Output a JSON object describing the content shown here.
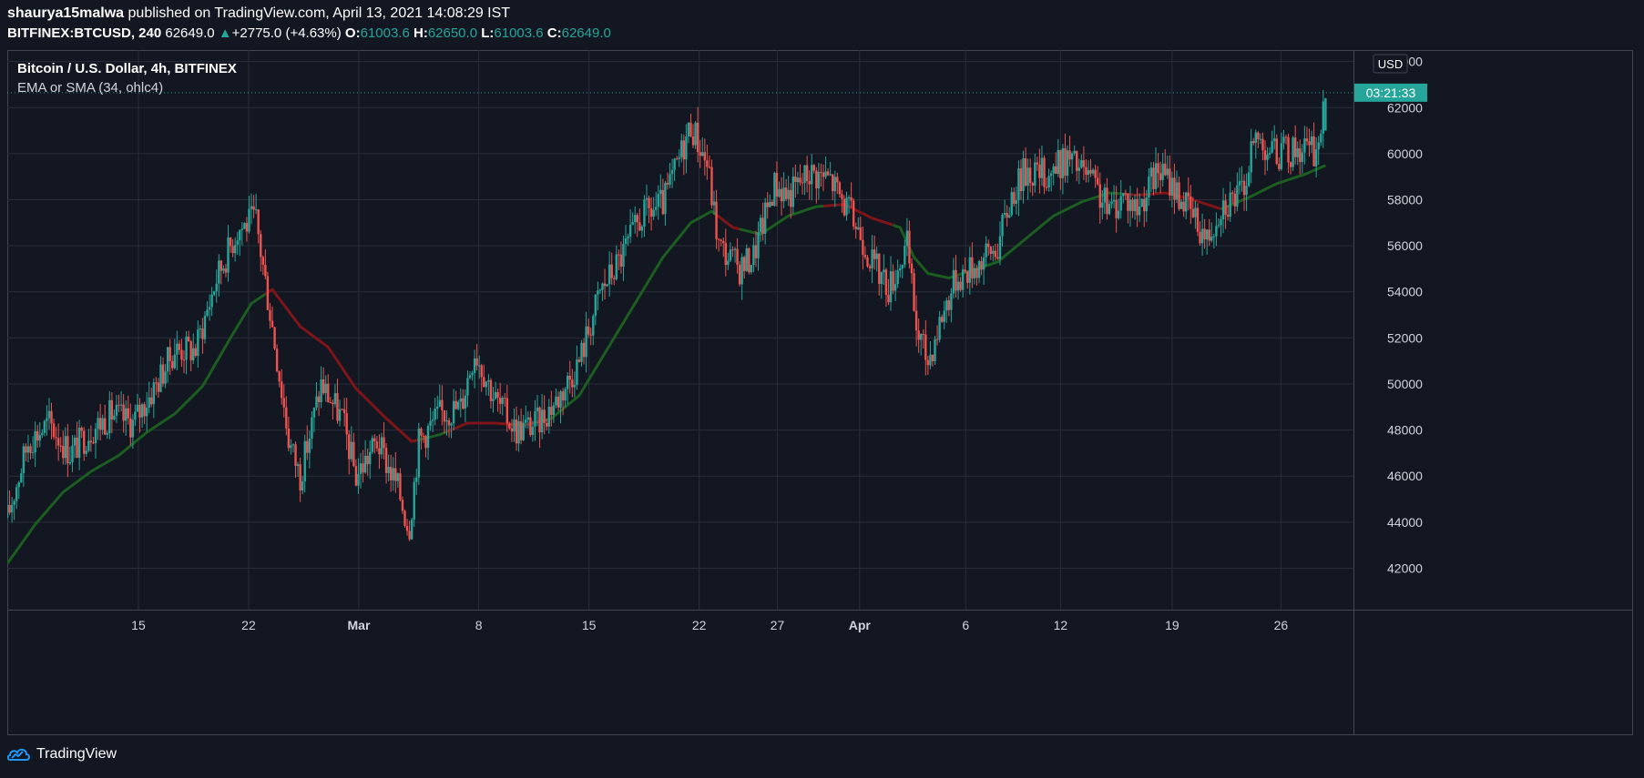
{
  "header": {
    "author": "shaurya15malwa",
    "published_text": "published on TradingView.com, April 13, 2021 14:08:29 IST"
  },
  "quote": {
    "symbol": "BITFINEX:BTCUSD, 240",
    "last": "62649.0",
    "change_arrow": "▲",
    "change": "+2775.0 (+4.63%)",
    "o_label": "O:",
    "o": "61003.6",
    "h_label": "H:",
    "h": "62650.0",
    "l_label": "L:",
    "l": "61003.6",
    "c_label": "C:",
    "c": "62649.0"
  },
  "legend": {
    "title": "Bitcoin / U.S. Dollar, 4h, BITFINEX",
    "indicator": "EMA or SMA (34, ohlc4)"
  },
  "brand": {
    "name": "TradingView",
    "icon": "tradingview-logo-icon"
  },
  "colors": {
    "background": "#131722",
    "grid": "#2a2e39",
    "up": "#26a69a",
    "down": "#ef5350",
    "ma_up": "#1b5e20",
    "ma_down": "#7f1518",
    "text": "#d1d4dc"
  },
  "chart_data": {
    "type": "candlestick",
    "currency_label": "USD",
    "price_ticks": [
      42000,
      44000,
      46000,
      48000,
      50000,
      52000,
      54000,
      56000,
      58000,
      60000,
      62000,
      64000
    ],
    "ylim": [
      40200,
      64500
    ],
    "time_labels": [
      "15",
      "22",
      "Mar",
      "8",
      "15",
      "22",
      "27",
      "Apr",
      "6",
      "12",
      "19",
      "26"
    ],
    "xlim_days": [
      0,
      83
    ],
    "countdown_label": "03:21:33",
    "last_price": 62649.0,
    "grid": true,
    "candle_keypoints": [
      [
        0,
        44200
      ],
      [
        1.5,
        47500
      ],
      [
        3,
        48300
      ],
      [
        4.5,
        47000
      ],
      [
        6,
        48000
      ],
      [
        7.5,
        48700
      ],
      [
        9,
        48300
      ],
      [
        10.5,
        49800
      ],
      [
        12,
        51500
      ],
      [
        13.5,
        51500
      ],
      [
        15,
        54600
      ],
      [
        16.5,
        56700
      ],
      [
        17.8,
        57200
      ],
      [
        19,
        52500
      ],
      [
        20.2,
        47500
      ],
      [
        21,
        46000
      ],
      [
        22.5,
        50000
      ],
      [
        24,
        48500
      ],
      [
        25,
        46000
      ],
      [
        26.5,
        47500
      ],
      [
        28,
        45500
      ],
      [
        28.8,
        43700
      ],
      [
        29.5,
        47500
      ],
      [
        31,
        48700
      ],
      [
        32.5,
        49000
      ],
      [
        33.5,
        51500
      ],
      [
        35,
        49300
      ],
      [
        36.5,
        48000
      ],
      [
        38,
        48300
      ],
      [
        39.5,
        49400
      ],
      [
        41,
        51000
      ],
      [
        42.5,
        54000
      ],
      [
        44,
        55500
      ],
      [
        45.5,
        57300
      ],
      [
        47,
        57800
      ],
      [
        48,
        59500
      ],
      [
        49,
        61300
      ],
      [
        50.2,
        59500
      ],
      [
        51,
        56000
      ],
      [
        52.5,
        55000
      ],
      [
        53.5,
        55600
      ],
      [
        55,
        58700
      ],
      [
        56,
        58200
      ],
      [
        57.5,
        59200
      ],
      [
        59,
        58900
      ],
      [
        60.3,
        57500
      ],
      [
        61.2,
        56500
      ],
      [
        62,
        55300
      ],
      [
        63.2,
        54200
      ],
      [
        64.5,
        56000
      ],
      [
        65.2,
        52300
      ],
      [
        66,
        51000
      ],
      [
        67,
        53000
      ],
      [
        68,
        54600
      ],
      [
        69.5,
        55200
      ],
      [
        71,
        56000
      ],
      [
        72,
        58200
      ],
      [
        73,
        59300
      ],
      [
        74.5,
        59100
      ],
      [
        76,
        59800
      ],
      [
        77.5,
        59000
      ],
      [
        79,
        57500
      ],
      [
        80,
        58200
      ],
      [
        81,
        57600
      ],
      [
        82.5,
        59300
      ],
      [
        83.5,
        58700
      ],
      [
        85,
        57300
      ],
      [
        86,
        56300
      ],
      [
        87,
        57800
      ],
      [
        88.5,
        58300
      ],
      [
        89.5,
        60700
      ],
      [
        91,
        60000
      ],
      [
        92,
        60100
      ],
      [
        93,
        60300
      ],
      [
        93.7,
        60000
      ],
      [
        94.2,
        61000
      ],
      [
        94.55,
        62649
      ]
    ],
    "ma_keypoints": [
      [
        0,
        42200
      ],
      [
        2,
        43900
      ],
      [
        4,
        45300
      ],
      [
        6,
        46200
      ],
      [
        8,
        46900
      ],
      [
        10,
        47900
      ],
      [
        12,
        48700
      ],
      [
        14,
        49900
      ],
      [
        16,
        52000
      ],
      [
        17.5,
        53500
      ],
      [
        19,
        54100
      ],
      [
        21,
        52500
      ],
      [
        23,
        51600
      ],
      [
        25,
        49800
      ],
      [
        27,
        48600
      ],
      [
        29,
        47500
      ],
      [
        31,
        47800
      ],
      [
        33,
        48300
      ],
      [
        35,
        48300
      ],
      [
        37,
        48200
      ],
      [
        39,
        48500
      ],
      [
        41,
        49500
      ],
      [
        43,
        51500
      ],
      [
        45,
        53500
      ],
      [
        47,
        55500
      ],
      [
        49,
        57000
      ],
      [
        50.5,
        57500
      ],
      [
        52,
        56800
      ],
      [
        54,
        56500
      ],
      [
        56,
        57300
      ],
      [
        58,
        57700
      ],
      [
        60,
        57800
      ],
      [
        62,
        57200
      ],
      [
        64,
        56800
      ],
      [
        65,
        55500
      ],
      [
        66,
        54800
      ],
      [
        67.5,
        54600
      ],
      [
        69,
        54900
      ],
      [
        71,
        55300
      ],
      [
        73,
        56300
      ],
      [
        75,
        57300
      ],
      [
        77,
        57900
      ],
      [
        79,
        58300
      ],
      [
        81,
        58200
      ],
      [
        83,
        58300
      ],
      [
        85,
        58000
      ],
      [
        87,
        57600
      ],
      [
        89,
        58100
      ],
      [
        91,
        58700
      ],
      [
        93,
        59100
      ],
      [
        94.55,
        59500
      ]
    ],
    "ma_color_segments": [
      {
        "from": 0,
        "to": 18.5,
        "color": "up"
      },
      {
        "from": 18.5,
        "to": 29.5,
        "color": "down"
      },
      {
        "from": 29.5,
        "to": 31.5,
        "color": "up"
      },
      {
        "from": 31.5,
        "to": 38.5,
        "color": "down"
      },
      {
        "from": 38.5,
        "to": 50.8,
        "color": "up"
      },
      {
        "from": 50.8,
        "to": 52.5,
        "color": "down"
      },
      {
        "from": 52.5,
        "to": 58.5,
        "color": "up"
      },
      {
        "from": 58.5,
        "to": 63.5,
        "color": "down"
      },
      {
        "from": 63.5,
        "to": 80,
        "color": "up"
      },
      {
        "from": 80,
        "to": 87,
        "color": "down"
      },
      {
        "from": 87,
        "to": 94.55,
        "color": "up"
      }
    ]
  }
}
